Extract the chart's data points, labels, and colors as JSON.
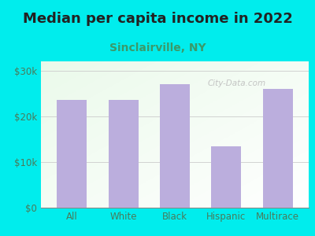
{
  "title": "Median per capita income in 2022",
  "subtitle": "Sinclairville, NY",
  "categories": [
    "All",
    "White",
    "Black",
    "Hispanic",
    "Multirace"
  ],
  "values": [
    23500,
    23500,
    27000,
    13500,
    26000
  ],
  "bar_color": "#bbaedd",
  "background_outer": "#00eded",
  "title_fontsize": 13,
  "subtitle_fontsize": 10,
  "subtitle_color": "#3a9a6a",
  "tick_color": "#4a7a5a",
  "ylim": [
    0,
    32000
  ],
  "yticks": [
    0,
    10000,
    20000,
    30000
  ],
  "ytick_labels": [
    "$0",
    "$10k",
    "$20k",
    "$30k"
  ],
  "watermark": "City-Data.com"
}
